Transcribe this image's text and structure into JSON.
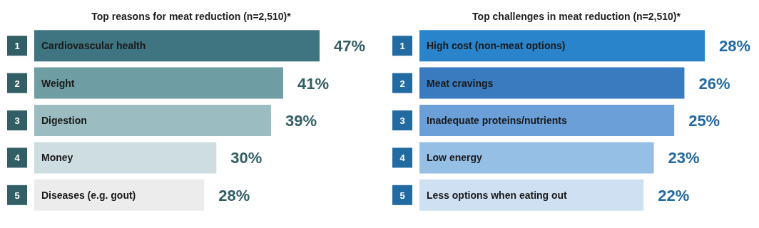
{
  "chart_data": [
    {
      "type": "bar",
      "orientation": "horizontal",
      "title": "Top reasons for meat reduction (n=2,510)*",
      "categories": [
        "Cardiovascular health",
        "Weight",
        "Digestion",
        "Money",
        "Diseases (e.g. gout)"
      ],
      "values": [
        47,
        41,
        39,
        30,
        28
      ],
      "value_labels": [
        "47%",
        "41%",
        "39%",
        "30%",
        "28%"
      ],
      "colors": [
        "#3f7580",
        "#6e9ea3",
        "#9bbcc0",
        "#cddde0",
        "#ececec"
      ],
      "annotations": [
        "1",
        "2",
        "3",
        "4",
        "5"
      ]
    },
    {
      "type": "bar",
      "orientation": "horizontal",
      "title": "Top challenges in meat reduction (n=2,510)*",
      "categories": [
        "High cost (non-meat options)",
        "Meat cravings",
        "Inadequate proteins/nutrients",
        "Low energy",
        "Less options when eating out"
      ],
      "values": [
        28,
        26,
        25,
        23,
        22
      ],
      "value_labels": [
        "28%",
        "26%",
        "25%",
        "23%",
        "22%"
      ],
      "colors": [
        "#2a84cb",
        "#3a7bc0",
        "#6a9fd8",
        "#96bfe6",
        "#cfe0f3"
      ],
      "annotations": [
        "1",
        "2",
        "3",
        "4",
        "5"
      ]
    }
  ]
}
